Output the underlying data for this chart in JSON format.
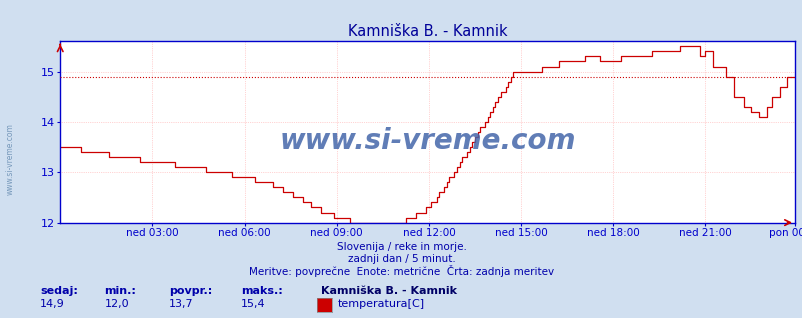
{
  "title": "Kamniška B. - Kamnik",
  "title_color": "#000099",
  "bg_color": "#d0dff0",
  "plot_bg_color": "#ffffff",
  "grid_color": "#ffaaaa",
  "axis_color": "#0000cc",
  "line_color": "#cc0000",
  "dotted_line_value": 14.9,
  "ymin": 12.0,
  "ymax": 15.6,
  "yticks": [
    12,
    13,
    14,
    15
  ],
  "xlabel_color": "#0000cc",
  "xtick_labels": [
    "ned 03:00",
    "ned 06:00",
    "ned 09:00",
    "ned 12:00",
    "ned 15:00",
    "ned 18:00",
    "ned 21:00",
    "pon 00:00"
  ],
  "watermark": "www.si-vreme.com",
  "watermark_color": "#4466aa",
  "subtitle1": "Slovenija / reke in morje.",
  "subtitle2": "zadnji dan / 5 minut.",
  "subtitle3": "Meritve: povprečne  Enote: metrične  Črta: zadnja meritev",
  "subtitle_color": "#0000aa",
  "footer_label_color": "#0000aa",
  "footer_value_color": "#0000aa",
  "footer_bold_color": "#000066",
  "sedaj": "14,9",
  "min_val": "12,0",
  "povpr": "13,7",
  "maks": "15,4",
  "station_name": "Kamniška B. - Kamnik",
  "legend_label": "temperatura[C]",
  "legend_color": "#cc0000",
  "sidewatermark": "www.si-vreme.com",
  "sidewatermark_color": "#7799bb"
}
